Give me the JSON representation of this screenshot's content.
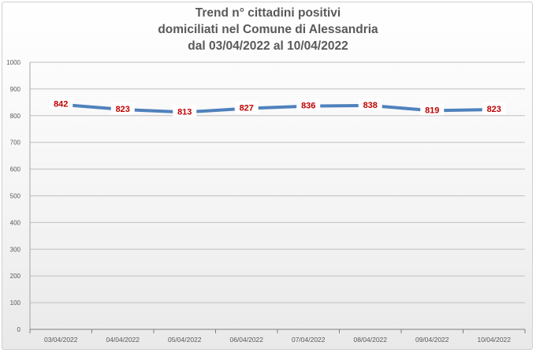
{
  "chart_data": {
    "type": "line",
    "title": [
      "Trend n° cittadini positivi",
      "domiciliati nel Comune di Alessandria",
      "dal 03/04/2022 al 10/04/2022"
    ],
    "categories": [
      "03/04/2022",
      "04/04/2022",
      "05/04/2022",
      "06/04/2022",
      "07/04/2022",
      "08/04/2022",
      "09/04/2022",
      "10/04/2022"
    ],
    "series": [
      {
        "values": [
          842,
          823,
          813,
          827,
          836,
          838,
          819,
          823
        ]
      }
    ],
    "ylim": [
      0,
      1000
    ],
    "yticks": [
      0,
      100,
      200,
      300,
      400,
      500,
      600,
      700,
      800,
      900,
      1000
    ],
    "grid": true,
    "legend": "none",
    "xlabel": "",
    "ylabel": ""
  },
  "colors": {
    "line": "#4f81bd",
    "data_label": "#c00000",
    "grid": "#bfbfbf",
    "text": "#595959"
  }
}
